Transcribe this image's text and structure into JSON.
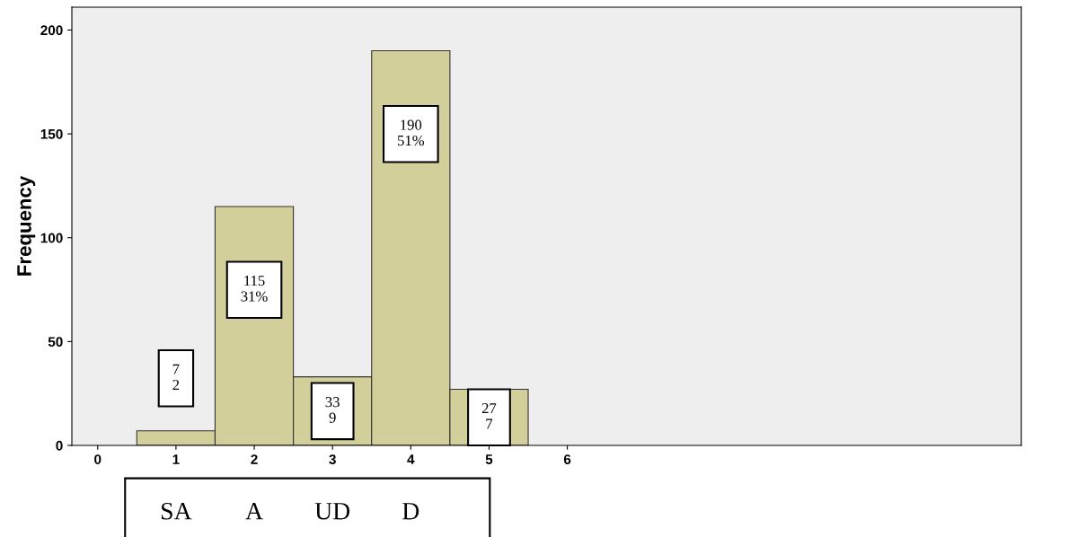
{
  "chart_data": {
    "type": "histogram",
    "ylabel": "Frequency",
    "bins": [
      0.5,
      1.5,
      2.5,
      3.5,
      4.5,
      5.5
    ],
    "values": [
      7,
      115,
      33,
      190,
      27
    ],
    "color": "#d3cf9a",
    "value_labels": [
      "7\n2",
      "115\n31%",
      "33\n9",
      "190\n51%",
      "27\n7"
    ],
    "xlim": [
      -0.33,
      11.8
    ],
    "xticks": [
      0,
      1,
      2,
      3,
      4,
      5,
      6
    ],
    "ylim": [
      0,
      211
    ],
    "yticks": [
      0,
      50,
      100,
      150,
      200
    ],
    "annotations": [
      "SA",
      "A",
      "UD",
      "D"
    ],
    "grid": false
  }
}
